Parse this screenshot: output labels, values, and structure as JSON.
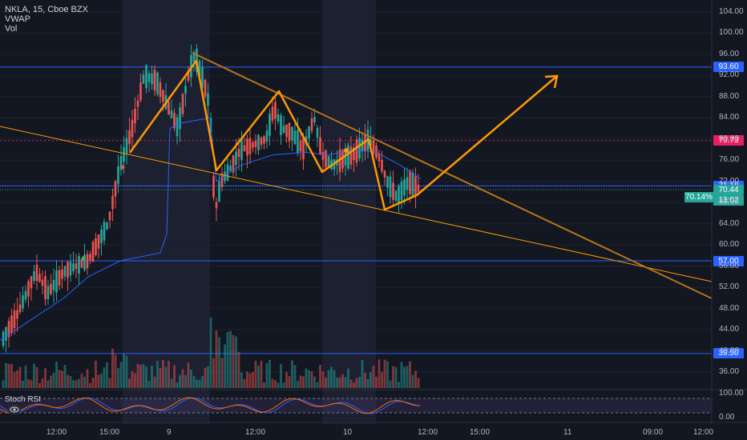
{
  "legend": {
    "symbol": "NKLA, 15, Cboe BZX",
    "vwap": "VWAP",
    "vol": "Vol"
  },
  "indicator": {
    "name": "Stoch RSI"
  },
  "price_axis": {
    "ticks": [
      "104.00",
      "100.00",
      "96.00",
      "92.00",
      "88.00",
      "84.00",
      "80.00",
      "76.00",
      "72.00",
      "68.00",
      "64.00",
      "60.00",
      "56.00",
      "52.00",
      "48.00",
      "44.00",
      "40.00",
      "36.00"
    ],
    "tick_values": [
      104,
      100,
      96,
      92,
      88,
      84,
      80,
      76,
      72,
      68,
      64,
      60,
      56,
      52,
      48,
      44,
      40,
      36
    ]
  },
  "stoch_axis": {
    "ticks": [
      "100.00",
      "0.00"
    ]
  },
  "time_axis": {
    "labels": [
      "12:00",
      "15:00",
      "9",
      "12:00",
      "10",
      "12:00",
      "15:00",
      "11",
      "09:00",
      "12:00"
    ]
  },
  "price_tags": [
    {
      "label": "93.60",
      "color": "#2962ff"
    },
    {
      "label": "79.73",
      "color": "#e91e63"
    },
    {
      "label": "71.18",
      "color": "#2962ff"
    },
    {
      "label": "70.44",
      "color": "#26a69a"
    },
    {
      "label": "13:02",
      "color": "#26a69a"
    },
    {
      "label": "57.00",
      "color": "#2962ff"
    },
    {
      "label": "39.50",
      "color": "#2962ff"
    }
  ],
  "pct_tag": "70.14%",
  "horizontal_levels": [
    93.6,
    71.18,
    57.0,
    39.5
  ],
  "dotted_level": 79.73,
  "last_price": 70.44,
  "colors": {
    "up": "#26a69a",
    "down": "#ef5350",
    "vwap": "#2962ff",
    "trend": "#ff9800",
    "trend_dark": "#b8741a",
    "level": "#2962ff",
    "pink": "#e91e63"
  },
  "chart_data": {
    "type": "candlestick",
    "symbol": "NKLA",
    "interval": "15",
    "exchange": "Cboe BZX",
    "ylim": [
      34,
      106
    ]
  }
}
